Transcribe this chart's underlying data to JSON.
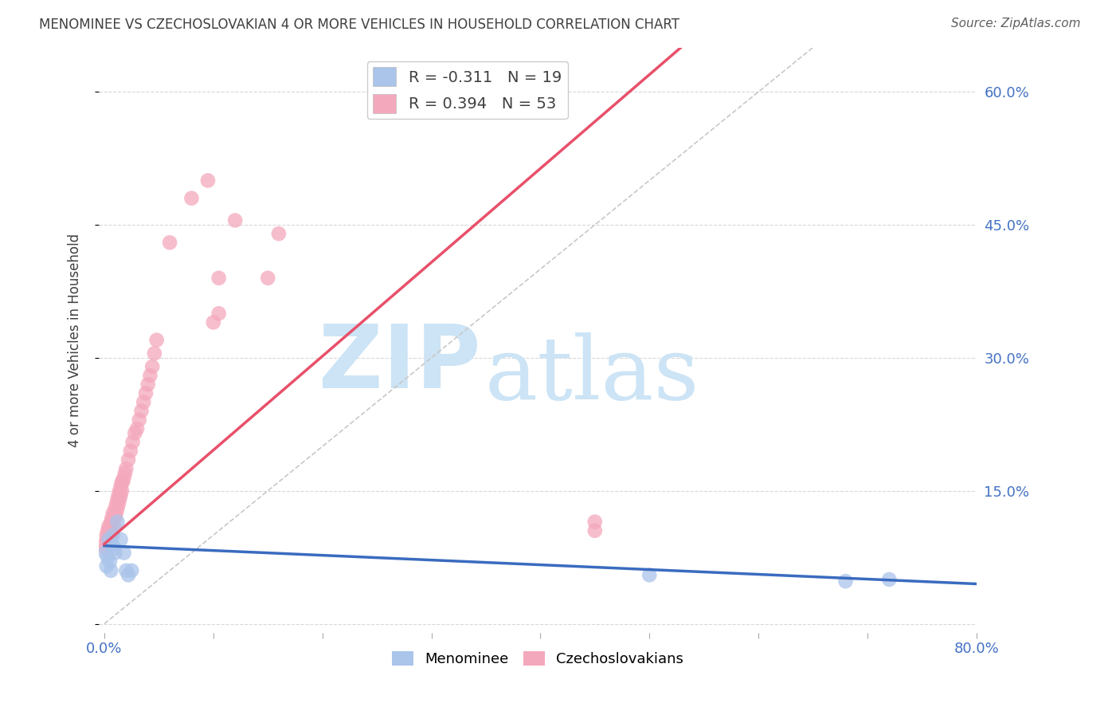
{
  "title": "MENOMINEE VS CZECHOSLOVAKIAN 4 OR MORE VEHICLES IN HOUSEHOLD CORRELATION CHART",
  "source": "Source: ZipAtlas.com",
  "ylabel": "4 or more Vehicles in Household",
  "x_ticks": [
    0.0,
    0.1,
    0.2,
    0.3,
    0.4,
    0.5,
    0.6,
    0.7,
    0.8
  ],
  "y_ticks": [
    0.0,
    0.15,
    0.3,
    0.45,
    0.6
  ],
  "xlim": [
    -0.005,
    0.8
  ],
  "ylim": [
    -0.01,
    0.65
  ],
  "series1_label": "Menominee",
  "series2_label": "Czechoslovakians",
  "series1_color": "#aac4ea",
  "series2_color": "#f4a8bc",
  "series1_line_color": "#3a6bbf",
  "series2_line_color": "#e8506a",
  "diagonal_line_color": "#c8c8c8",
  "background_color": "#ffffff",
  "grid_color": "#d8d8d8",
  "watermark_color": "#cce4f5",
  "title_color": "#404040",
  "right_axis_color": "#4472c4",
  "series1_R": -0.311,
  "series1_N": 19,
  "series2_R": 0.394,
  "series2_N": 53,
  "menominee_x": [
    0.001,
    0.002,
    0.003,
    0.004,
    0.005,
    0.006,
    0.007,
    0.008,
    0.009,
    0.01,
    0.012,
    0.015,
    0.018,
    0.02,
    0.022,
    0.025,
    0.5,
    0.68,
    0.72
  ],
  "menominee_y": [
    0.08,
    0.065,
    0.075,
    0.095,
    0.07,
    0.06,
    0.09,
    0.1,
    0.085,
    0.08,
    0.115,
    0.095,
    0.08,
    0.06,
    0.055,
    0.06,
    0.055,
    0.048,
    0.05
  ],
  "czechoslovakian_x": [
    0.001,
    0.001,
    0.002,
    0.002,
    0.003,
    0.003,
    0.004,
    0.004,
    0.005,
    0.005,
    0.006,
    0.006,
    0.007,
    0.007,
    0.008,
    0.008,
    0.009,
    0.009,
    0.01,
    0.01,
    0.011,
    0.011,
    0.012,
    0.012,
    0.013,
    0.013,
    0.014,
    0.014,
    0.015,
    0.015,
    0.016,
    0.016,
    0.017,
    0.018,
    0.019,
    0.02,
    0.022,
    0.024,
    0.026,
    0.028,
    0.03,
    0.032,
    0.034,
    0.036,
    0.038,
    0.04,
    0.042,
    0.044,
    0.046,
    0.048,
    0.1,
    0.105,
    0.45
  ],
  "czechoslovakian_y": [
    0.09,
    0.085,
    0.095,
    0.1,
    0.095,
    0.105,
    0.1,
    0.11,
    0.095,
    0.105,
    0.11,
    0.115,
    0.1,
    0.12,
    0.115,
    0.125,
    0.11,
    0.12,
    0.12,
    0.13,
    0.125,
    0.135,
    0.13,
    0.14,
    0.135,
    0.145,
    0.14,
    0.15,
    0.145,
    0.155,
    0.15,
    0.16,
    0.16,
    0.165,
    0.17,
    0.175,
    0.185,
    0.195,
    0.205,
    0.215,
    0.22,
    0.23,
    0.24,
    0.25,
    0.26,
    0.27,
    0.28,
    0.29,
    0.305,
    0.32,
    0.34,
    0.35,
    0.105
  ],
  "czech_outliers_x": [
    0.06,
    0.08,
    0.095,
    0.105,
    0.12,
    0.15,
    0.16
  ],
  "czech_outliers_y": [
    0.43,
    0.48,
    0.5,
    0.39,
    0.455,
    0.39,
    0.44
  ],
  "czech_mid_x": [
    0.45
  ],
  "czech_mid_y": [
    0.115
  ],
  "menominee_line_x0": 0.0,
  "menominee_line_y0": 0.088,
  "menominee_line_x1": 0.8,
  "menominee_line_y1": 0.045,
  "czech_line_x0": 0.0,
  "czech_line_y0": 0.09,
  "czech_line_x1": 0.17,
  "czech_line_y1": 0.27
}
